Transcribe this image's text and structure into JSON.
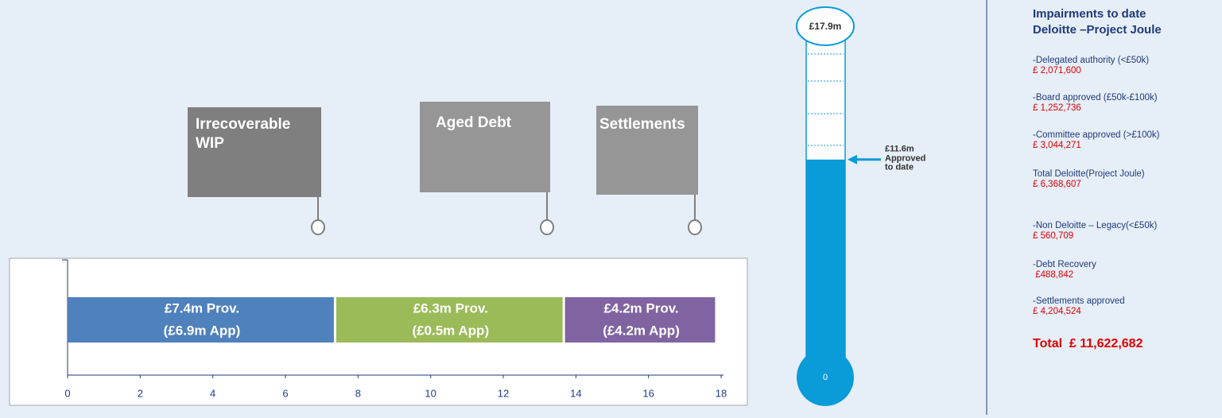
{
  "chart_data": {
    "type": "stacked-bar",
    "series": [
      {
        "color": "#4f81bd",
        "values": [
          7.4
        ],
        "value_labels": [
          "£7.4m Prov."
        ],
        "sublabels": [
          "(£6.9m App)"
        ]
      },
      {
        "color": "#9bbb59",
        "values": [
          6.3
        ],
        "value_labels": [
          "£6.3m Prov."
        ],
        "sublabels": [
          "(£0.5m App)"
        ]
      },
      {
        "color": "#8064a2",
        "values": [
          4.2
        ],
        "value_labels": [
          "£4.2m Prov."
        ],
        "sublabels": [
          "(£4.2m App)"
        ]
      }
    ],
    "xlim": [
      0,
      18
    ],
    "xticks": [
      0,
      2,
      4,
      6,
      8,
      10,
      12,
      14,
      16,
      18
    ]
  },
  "callouts": [
    {
      "lines": [
        "Irrecoverable",
        "WIP"
      ],
      "color": "#7f7f7f"
    },
    {
      "lines": [
        "Aged Debt"
      ],
      "color": "#969696"
    },
    {
      "lines": [
        "Settlements"
      ],
      "color": "#969696"
    }
  ],
  "thermometer": {
    "min": 0,
    "max": 17.9,
    "max_label": "£17.9m",
    "value": 11.6,
    "value_label": "£11.6m",
    "caption": [
      "Approved",
      "to date"
    ]
  },
  "panel": {
    "title": [
      "Impairments to date",
      "Deloitte –Project Joule"
    ],
    "items": [
      {
        "label": "-Delegated authority (<£50k)",
        "amount": "£ 2,071,600"
      },
      {
        "label": "-Board approved (£50k-£100k)",
        "amount": "£ 1,252,736"
      },
      {
        "label": "-Committee approved (>£100k)",
        "amount": "£ 3,044,271"
      },
      {
        "label": "Total Deloitte(Project Joule)",
        "amount": "£ 6,368,607"
      },
      {
        "label": "-Non Deloitte – Legacy(<£50k)",
        "amount": "£ 560,709"
      },
      {
        "label": "-Debt Recovery",
        "amount": " £488,842"
      },
      {
        "label": "-Settlements approved",
        "amount": "£ 4,204,524"
      }
    ],
    "total": "Total  £ 11,622,682"
  }
}
